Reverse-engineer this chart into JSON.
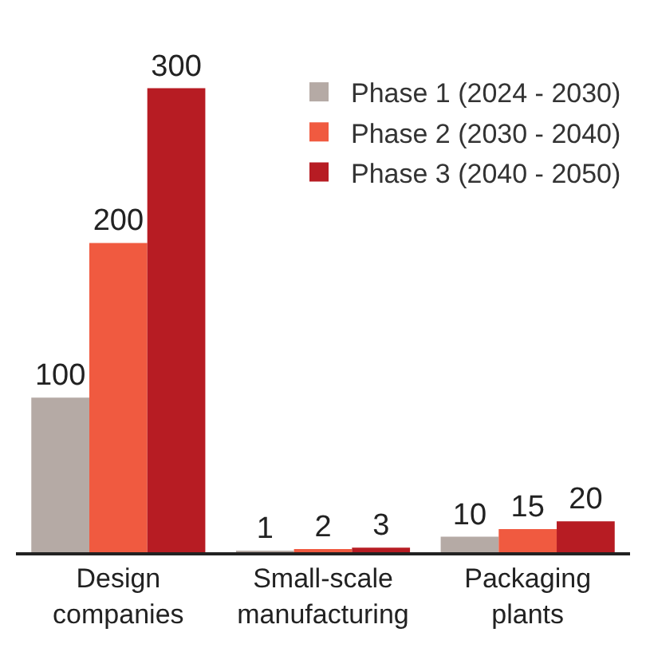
{
  "chart_data": {
    "type": "bar",
    "categories": [
      "Design companies",
      "Small-scale manufacturing",
      "Packaging plants"
    ],
    "series": [
      {
        "name": "Phase 1 (2024 - 2030)",
        "color": "#b5aaa5",
        "values": [
          100,
          1,
          10
        ]
      },
      {
        "name": "Phase 2 (2030 - 2040)",
        "color": "#f05a40",
        "values": [
          200,
          2,
          15
        ]
      },
      {
        "name": "Phase 3 (2040 - 2050)",
        "color": "#b71c23",
        "values": [
          300,
          3,
          20
        ]
      }
    ],
    "data_labels": true,
    "legend": "top right",
    "grid": false
  }
}
